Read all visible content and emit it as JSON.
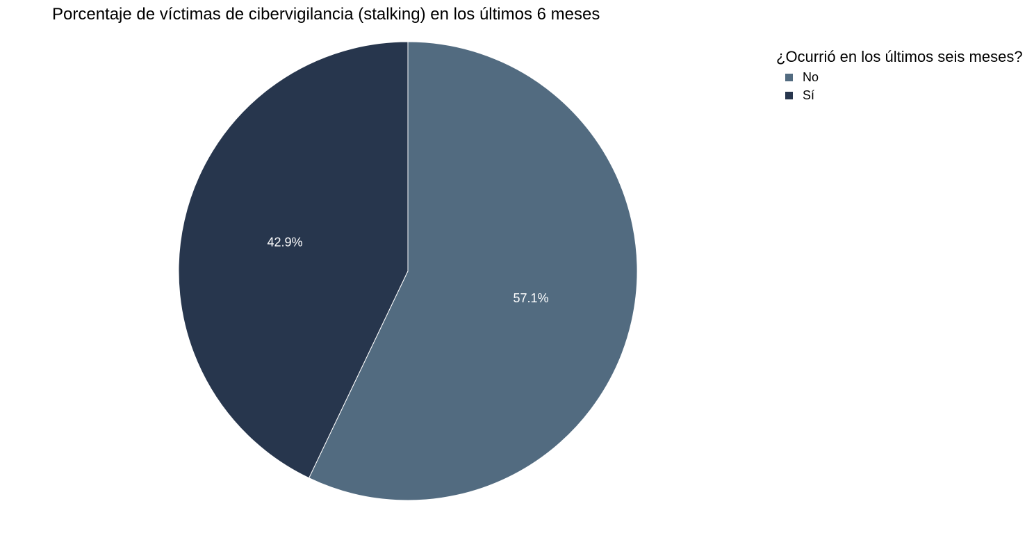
{
  "chart_data": {
    "type": "pie",
    "title": "Porcentaje de víctimas de cibervigilancia (stalking) en los últimos 6 meses",
    "legend_title": "¿Ocurrió en los últimos seis meses?",
    "legend_position": "top-right",
    "slices": [
      {
        "name": "No",
        "value": 57.1,
        "label": "57.1%",
        "color": "#526b80"
      },
      {
        "name": "Sí",
        "value": 42.9,
        "label": "42.9%",
        "color": "#27364d"
      }
    ],
    "legend": [
      {
        "label": "No",
        "color": "#526b80"
      },
      {
        "label": "Sí",
        "color": "#27364d"
      }
    ],
    "label_color": "#ffffff",
    "slice_border_color": "#ffffff"
  }
}
